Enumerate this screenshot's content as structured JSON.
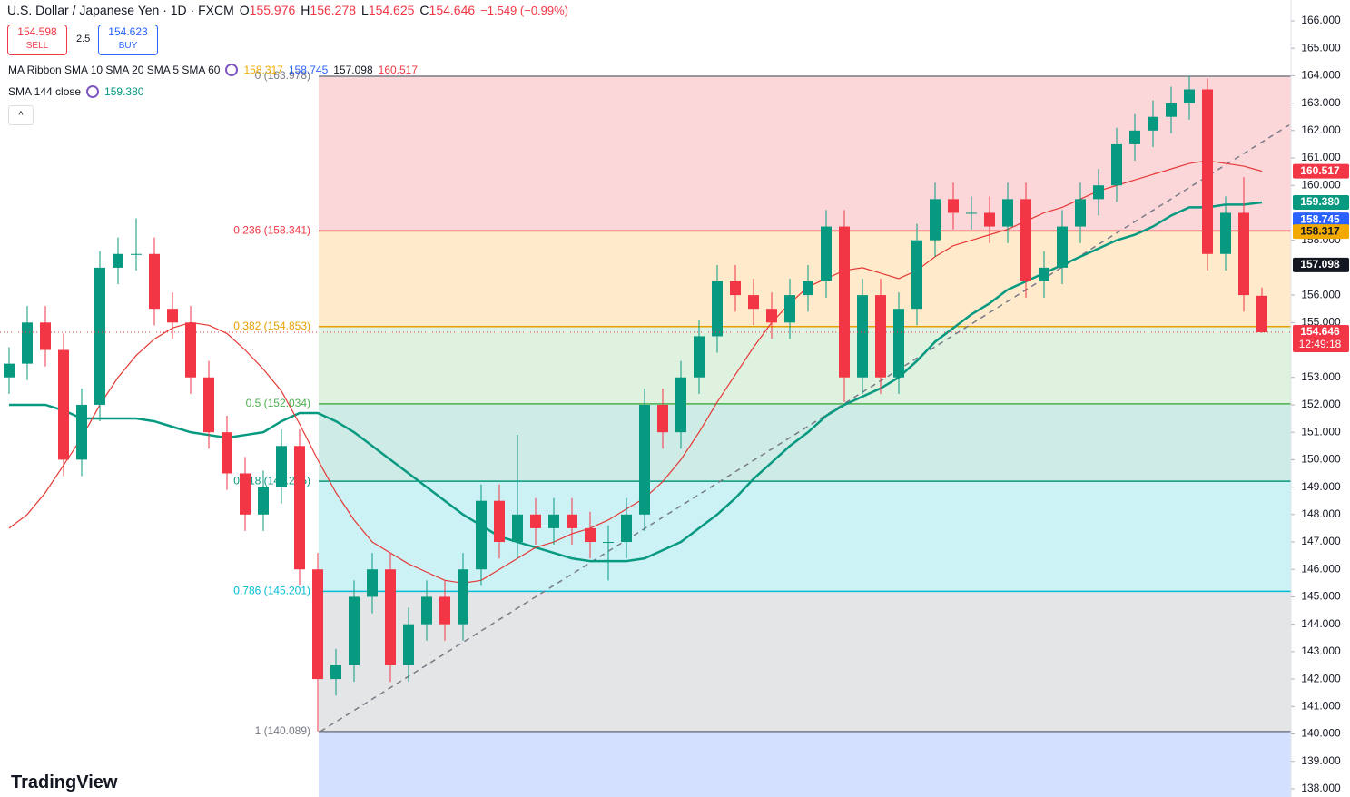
{
  "header": {
    "symbol": "U.S. Dollar / Japanese Yen · 1D · FXCM",
    "ohlc": [
      {
        "key": "O",
        "value": "155.976"
      },
      {
        "key": "H",
        "value": "156.278"
      },
      {
        "key": "L",
        "value": "154.625"
      },
      {
        "key": "C",
        "value": "154.646"
      }
    ],
    "change": "−1.549 (−0.99%)",
    "sell": {
      "price": "154.598",
      "label": "SELL"
    },
    "spread": "2.5",
    "buy": {
      "price": "154.623",
      "label": "BUY"
    },
    "indicators": [
      {
        "name": "MA Ribbon SMA 10 SMA 20 SMA 5 SMA 60",
        "values": [
          {
            "text": "158.317",
            "color": "#f2a900"
          },
          {
            "text": "158.745",
            "color": "#2962ff"
          },
          {
            "text": "157.098",
            "color": "#131722"
          },
          {
            "text": "160.517",
            "color": "#f23645"
          }
        ]
      },
      {
        "name": "SMA 144 close",
        "values": [
          {
            "text": "159.380",
            "color": "#089981"
          }
        ]
      }
    ],
    "logo": "TradingView"
  },
  "chart_data": {
    "type": "candlestick",
    "open": [
      153,
      153.5,
      155,
      154,
      150,
      152,
      157,
      157.5,
      157.5,
      155.5,
      155,
      153,
      151,
      149.5,
      148,
      149,
      150.5,
      146,
      142,
      142.5,
      145,
      146,
      142.5,
      144,
      145,
      144,
      146,
      148.5,
      147,
      148,
      147.5,
      148,
      147.5,
      147,
      147,
      148,
      152,
      151,
      153,
      154.5,
      156.5,
      156,
      155.5,
      155,
      156,
      156.5,
      158.5,
      153,
      156,
      153,
      155.5,
      158,
      159.5,
      159,
      159,
      158.5,
      159.5,
      156.5,
      157,
      158.5,
      159.5,
      160,
      161.5,
      162,
      162.5,
      163,
      163.5,
      157.5,
      159,
      155.976
    ],
    "high": [
      154.1,
      155.6,
      155.6,
      154.6,
      152.6,
      157.6,
      158.1,
      158.8,
      158.1,
      156.1,
      155.6,
      153.6,
      151.6,
      150.1,
      149.6,
      151.1,
      151.1,
      146.6,
      143.1,
      145.6,
      146.6,
      146.6,
      144.6,
      145.6,
      145.6,
      146.6,
      149.1,
      149.1,
      150.9,
      148.6,
      148.6,
      148.6,
      148.1,
      147.6,
      148.6,
      152.6,
      152.6,
      153.6,
      155.1,
      157.1,
      157.1,
      156.6,
      156.1,
      156.6,
      157.1,
      159.1,
      159.1,
      156.6,
      156.6,
      156.1,
      158.6,
      160.1,
      160.1,
      159.6,
      159.6,
      160.1,
      160.1,
      157.6,
      159.1,
      160.1,
      160.6,
      162.1,
      162.6,
      163.1,
      163.6,
      163.98,
      163.9,
      159.6,
      160.3,
      156.278
    ],
    "low": [
      152.4,
      152.9,
      153.4,
      149.4,
      149.4,
      151.4,
      156.4,
      156.9,
      154.9,
      154.4,
      152.4,
      150.4,
      148.9,
      147.4,
      147.4,
      148.4,
      145.4,
      140.089,
      141.4,
      141.9,
      144.4,
      141.9,
      141.9,
      143.4,
      143.4,
      143.4,
      145.4,
      146.4,
      146.4,
      146.9,
      146.9,
      146.9,
      146.4,
      145.6,
      146.4,
      147.4,
      150.4,
      150.4,
      152.4,
      153.9,
      155.4,
      154.9,
      154.4,
      154.4,
      155.4,
      155.9,
      152.1,
      152.4,
      152.4,
      152.4,
      154.9,
      157.4,
      158.4,
      158.4,
      157.9,
      157.9,
      155.9,
      155.9,
      156.4,
      157.9,
      158.9,
      159.4,
      160.9,
      161.4,
      161.9,
      162.4,
      156.9,
      156.9,
      155.4,
      154.625
    ],
    "close": [
      153.5,
      155,
      154,
      150,
      152,
      157,
      157.5,
      157.5,
      155.5,
      155,
      153,
      151,
      149.5,
      148,
      149,
      150.5,
      146,
      142,
      142.5,
      145,
      146,
      142.5,
      144,
      145,
      144,
      146,
      148.5,
      147,
      148,
      147.5,
      148,
      147.5,
      147,
      147,
      148,
      152,
      151,
      153,
      154.5,
      156.5,
      156,
      155.5,
      155,
      156,
      156.5,
      158.5,
      153,
      156,
      153,
      155.5,
      158,
      159.5,
      159,
      159,
      158.5,
      159.5,
      156.5,
      157,
      158.5,
      159.5,
      160,
      161.5,
      162,
      162.5,
      163,
      163.5,
      157.5,
      159,
      156,
      154.646
    ],
    "up_color": "#089981",
    "down_color": "#f23645",
    "series": [
      {
        "color": "#089981",
        "values": [
          152,
          152,
          152,
          151.8,
          151.5,
          151.5,
          151.5,
          151.5,
          151.4,
          151.2,
          151,
          150.9,
          150.8,
          150.9,
          151,
          151.4,
          151.7,
          151.7,
          151.4,
          151,
          150.5,
          150,
          149.5,
          149,
          148.5,
          148,
          147.6,
          147.2,
          147,
          146.8,
          146.6,
          146.4,
          146.3,
          146.3,
          146.3,
          146.4,
          146.7,
          147,
          147.5,
          148,
          148.6,
          149.3,
          149.9,
          150.5,
          151,
          151.6,
          152,
          152.3,
          152.6,
          153,
          153.6,
          154.3,
          154.8,
          155.3,
          155.7,
          156.2,
          156.5,
          156.8,
          157.1,
          157.4,
          157.7,
          158,
          158.2,
          158.5,
          158.9,
          159.2,
          159.2,
          159.3,
          159.3,
          159.38
        ]
      },
      {
        "color": "#e53935",
        "values": [
          147.5,
          148,
          148.8,
          149.8,
          150.8,
          152,
          153,
          153.8,
          154.4,
          154.8,
          155,
          154.9,
          154.6,
          154,
          153.3,
          152.5,
          151.3,
          150,
          148.8,
          147.8,
          147,
          146.6,
          146.2,
          145.9,
          145.6,
          145.5,
          145.6,
          146,
          146.4,
          146.8,
          147,
          147.3,
          147.5,
          147.8,
          148.2,
          148.6,
          149.2,
          150,
          151,
          152.1,
          153.1,
          154.1,
          155,
          155.7,
          156.3,
          156.6,
          156.9,
          157,
          156.8,
          156.6,
          156.9,
          157.4,
          157.8,
          158,
          158.2,
          158.4,
          158.7,
          159,
          159.2,
          159.5,
          159.8,
          160,
          160.2,
          160.4,
          160.6,
          160.8,
          160.9,
          160.8,
          160.7,
          160.517
        ]
      }
    ],
    "ylim": [
      137.7,
      166.76
    ],
    "yticks": [
      {
        "value": 138,
        "label": "138.000"
      },
      {
        "value": 139,
        "label": "139.000"
      },
      {
        "value": 140,
        "label": "140.000"
      },
      {
        "value": 141,
        "label": "141.000"
      },
      {
        "value": 142,
        "label": "142.000"
      },
      {
        "value": 143,
        "label": "143.000"
      },
      {
        "value": 144,
        "label": "144.000"
      },
      {
        "value": 145,
        "label": "145.000"
      },
      {
        "value": 146,
        "label": "146.000"
      },
      {
        "value": 147,
        "label": "147.000"
      },
      {
        "value": 148,
        "label": "148.000"
      },
      {
        "value": 149,
        "label": "149.000"
      },
      {
        "value": 150,
        "label": "150.000"
      },
      {
        "value": 151,
        "label": "151.000"
      },
      {
        "value": 152,
        "label": "152.000"
      },
      {
        "value": 153,
        "label": "153.000"
      },
      {
        "value": 155,
        "label": "155.000"
      },
      {
        "value": 156,
        "label": "156.000"
      },
      {
        "value": 158,
        "label": "158.000"
      },
      {
        "value": 160,
        "label": "160.000"
      },
      {
        "value": 161,
        "label": "161.000"
      },
      {
        "value": 162,
        "label": "162.000"
      },
      {
        "value": 163,
        "label": "163.000"
      },
      {
        "value": 164,
        "label": "164.000"
      },
      {
        "value": 165,
        "label": "165.000"
      },
      {
        "value": 166,
        "label": "166.000"
      }
    ],
    "fib_levels": [
      {
        "value": 163.978,
        "label": "0 (163.978)",
        "color": "#787b86",
        "fill": "rgba(242,54,69,0.2)"
      },
      {
        "value": 158.341,
        "label": "0.236 (158.341)",
        "color": "#f23645",
        "fill": "rgba(255,152,0,0.2)"
      },
      {
        "value": 154.853,
        "label": "0.382 (154.853)",
        "color": "#e6a000",
        "fill": "rgba(76,175,80,0.18)"
      },
      {
        "value": 152.034,
        "label": "0.5 (152.034)",
        "color": "#4caf50",
        "fill": "rgba(8,153,129,0.2)"
      },
      {
        "value": 149.215,
        "label": "0.618 (149.215)",
        "color": "#089981",
        "fill": "rgba(0,188,212,0.2)"
      },
      {
        "value": 145.201,
        "label": "0.786 (145.201)",
        "color": "#00bcd4",
        "fill": "rgba(120,123,134,0.2)"
      },
      {
        "value": 140.089,
        "label": "1 (140.089)",
        "color": "#787b86",
        "fill": "rgba(41,98,255,0.2)"
      }
    ],
    "trendline": [
      140.089,
      162.2
    ],
    "price_tags": [
      {
        "value": 160.517,
        "label": "160.517",
        "color": "#f23645",
        "text_color": "#ffffff"
      },
      {
        "value": 159.38,
        "label": "159.380",
        "color": "#089981",
        "text_color": "#ffffff"
      },
      {
        "value": 158.745,
        "label": "158.745",
        "color": "#2962ff",
        "text_color": "#ffffff"
      },
      {
        "value": 158.317,
        "label": "158.317",
        "color": "#f2a900",
        "text_color": "#131722"
      },
      {
        "value": 157.098,
        "label": "157.098",
        "color": "#131722",
        "text_color": "#ffffff"
      },
      {
        "value": 154.646,
        "label": "154.646",
        "countdown": "12:49:18",
        "color": "#f23645",
        "text_color": "#ffffff"
      }
    ]
  }
}
